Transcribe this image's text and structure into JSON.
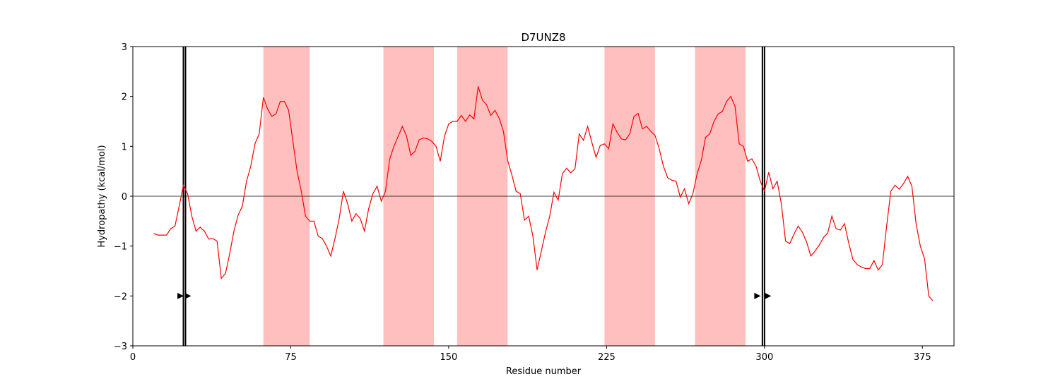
{
  "chart_data": {
    "type": "line",
    "title": "D7UNZ8",
    "xlabel": "Residue number",
    "ylabel": "Hydropathy (kcal/mol)",
    "xlim": [
      0,
      390
    ],
    "ylim": [
      -3,
      3
    ],
    "xticks": [
      0,
      75,
      150,
      225,
      300,
      375
    ],
    "yticks": [
      {
        "value": -3,
        "label": "−3"
      },
      {
        "value": -2,
        "label": "−2"
      },
      {
        "value": -1,
        "label": "−1"
      },
      0,
      1,
      2,
      3
    ],
    "hline": 0,
    "bands": [
      [
        62,
        84
      ],
      [
        119,
        143
      ],
      [
        154,
        178
      ],
      [
        224,
        248
      ],
      [
        267,
        291
      ]
    ],
    "band_color": "#ffbfbf",
    "vlines": [
      24,
      25,
      299,
      300
    ],
    "vline_color": "#000000",
    "arrows": {
      "x": [
        22.5,
        26,
        296.5,
        301.5
      ],
      "y": [
        -2,
        -2,
        -2,
        -2
      ],
      "color": "#000000"
    },
    "series": [
      {
        "color": "#ff0000",
        "x": [
          10,
          12,
          14,
          16,
          18,
          20,
          22,
          24,
          26,
          28,
          30,
          32,
          34,
          36,
          38,
          40,
          42,
          44,
          46,
          48,
          50,
          52,
          54,
          56,
          58,
          60,
          62,
          64,
          66,
          68,
          70,
          72,
          74,
          76,
          78,
          80,
          82,
          84,
          86,
          88,
          90,
          92,
          94,
          96,
          98,
          100,
          102,
          104,
          106,
          108,
          110,
          112,
          114,
          116,
          118,
          120,
          122,
          124,
          126,
          128,
          130,
          132,
          134,
          136,
          138,
          140,
          142,
          144,
          146,
          148,
          150,
          152,
          154,
          156,
          158,
          160,
          162,
          164,
          166,
          168,
          170,
          172,
          174,
          176,
          178,
          180,
          182,
          184,
          186,
          188,
          190,
          192,
          194,
          196,
          198,
          200,
          202,
          204,
          206,
          208,
          210,
          212,
          214,
          216,
          218,
          220,
          222,
          224,
          226,
          228,
          230,
          232,
          234,
          236,
          238,
          240,
          242,
          244,
          246,
          248,
          250,
          252,
          254,
          256,
          258,
          260,
          262,
          264,
          266,
          268,
          270,
          272,
          274,
          276,
          278,
          280,
          282,
          284,
          286,
          288,
          290,
          292,
          294,
          296,
          298,
          300,
          302,
          304,
          306,
          308,
          310,
          312,
          314,
          316,
          318,
          320,
          322,
          324,
          326,
          328,
          330,
          332,
          334,
          336,
          338,
          340,
          342,
          344,
          346,
          348,
          350,
          352,
          354,
          356,
          358,
          360,
          362,
          364,
          366,
          368,
          370,
          372,
          374,
          376,
          378,
          380
        ],
        "values": [
          -0.75,
          -0.78,
          -0.78,
          -0.78,
          -0.65,
          -0.6,
          -0.2,
          0.22,
          0.05,
          -0.4,
          -0.7,
          -0.62,
          -0.7,
          -0.86,
          -0.85,
          -0.9,
          -1.65,
          -1.55,
          -1.15,
          -0.7,
          -0.38,
          -0.2,
          0.3,
          0.6,
          1.05,
          1.25,
          1.98,
          1.75,
          1.6,
          1.65,
          1.9,
          1.9,
          1.72,
          1.1,
          0.5,
          0.1,
          -0.4,
          -0.5,
          -0.5,
          -0.8,
          -0.85,
          -1.0,
          -1.2,
          -0.85,
          -0.45,
          0.1,
          -0.15,
          -0.5,
          -0.35,
          -0.45,
          -0.7,
          -0.25,
          0.05,
          0.2,
          -0.1,
          0.1,
          0.75,
          1.0,
          1.2,
          1.4,
          1.2,
          0.82,
          0.9,
          1.13,
          1.17,
          1.15,
          1.1,
          1.0,
          0.7,
          1.2,
          1.45,
          1.5,
          1.5,
          1.62,
          1.5,
          1.63,
          1.55,
          2.2,
          1.93,
          1.83,
          1.62,
          1.72,
          1.56,
          1.3,
          0.72,
          0.43,
          0.1,
          0.05,
          -0.48,
          -0.4,
          -0.8,
          -1.48,
          -1.1,
          -0.72,
          -0.4,
          0.08,
          -0.08,
          0.45,
          0.56,
          0.47,
          0.55,
          1.25,
          1.12,
          1.4,
          1.08,
          0.78,
          1.02,
          1.05,
          0.95,
          1.45,
          1.28,
          1.15,
          1.13,
          1.25,
          1.6,
          1.66,
          1.35,
          1.4,
          1.3,
          1.22,
          0.95,
          0.6,
          0.37,
          0.32,
          0.3,
          -0.02,
          0.15,
          -0.15,
          0.05,
          0.45,
          0.72,
          1.18,
          1.25,
          1.5,
          1.65,
          1.7,
          1.9,
          2.0,
          1.8,
          1.05,
          1.0,
          0.7,
          0.75,
          0.6,
          0.3,
          0.1,
          0.48,
          0.15,
          0.3,
          -0.15,
          -0.9,
          -0.95,
          -0.76,
          -0.6,
          -0.72,
          -0.92,
          -1.2,
          -1.1,
          -0.98,
          -0.83,
          -0.74,
          -0.4,
          -0.65,
          -0.68,
          -0.55,
          -0.94,
          -1.27,
          -1.37,
          -1.42,
          -1.45,
          -1.45,
          -1.29,
          -1.48,
          -1.37,
          -0.6,
          0.1,
          0.22,
          0.14,
          0.25,
          0.4,
          0.2,
          -0.55,
          -1.0,
          -1.25,
          -2.0,
          -2.1
        ]
      }
    ]
  }
}
